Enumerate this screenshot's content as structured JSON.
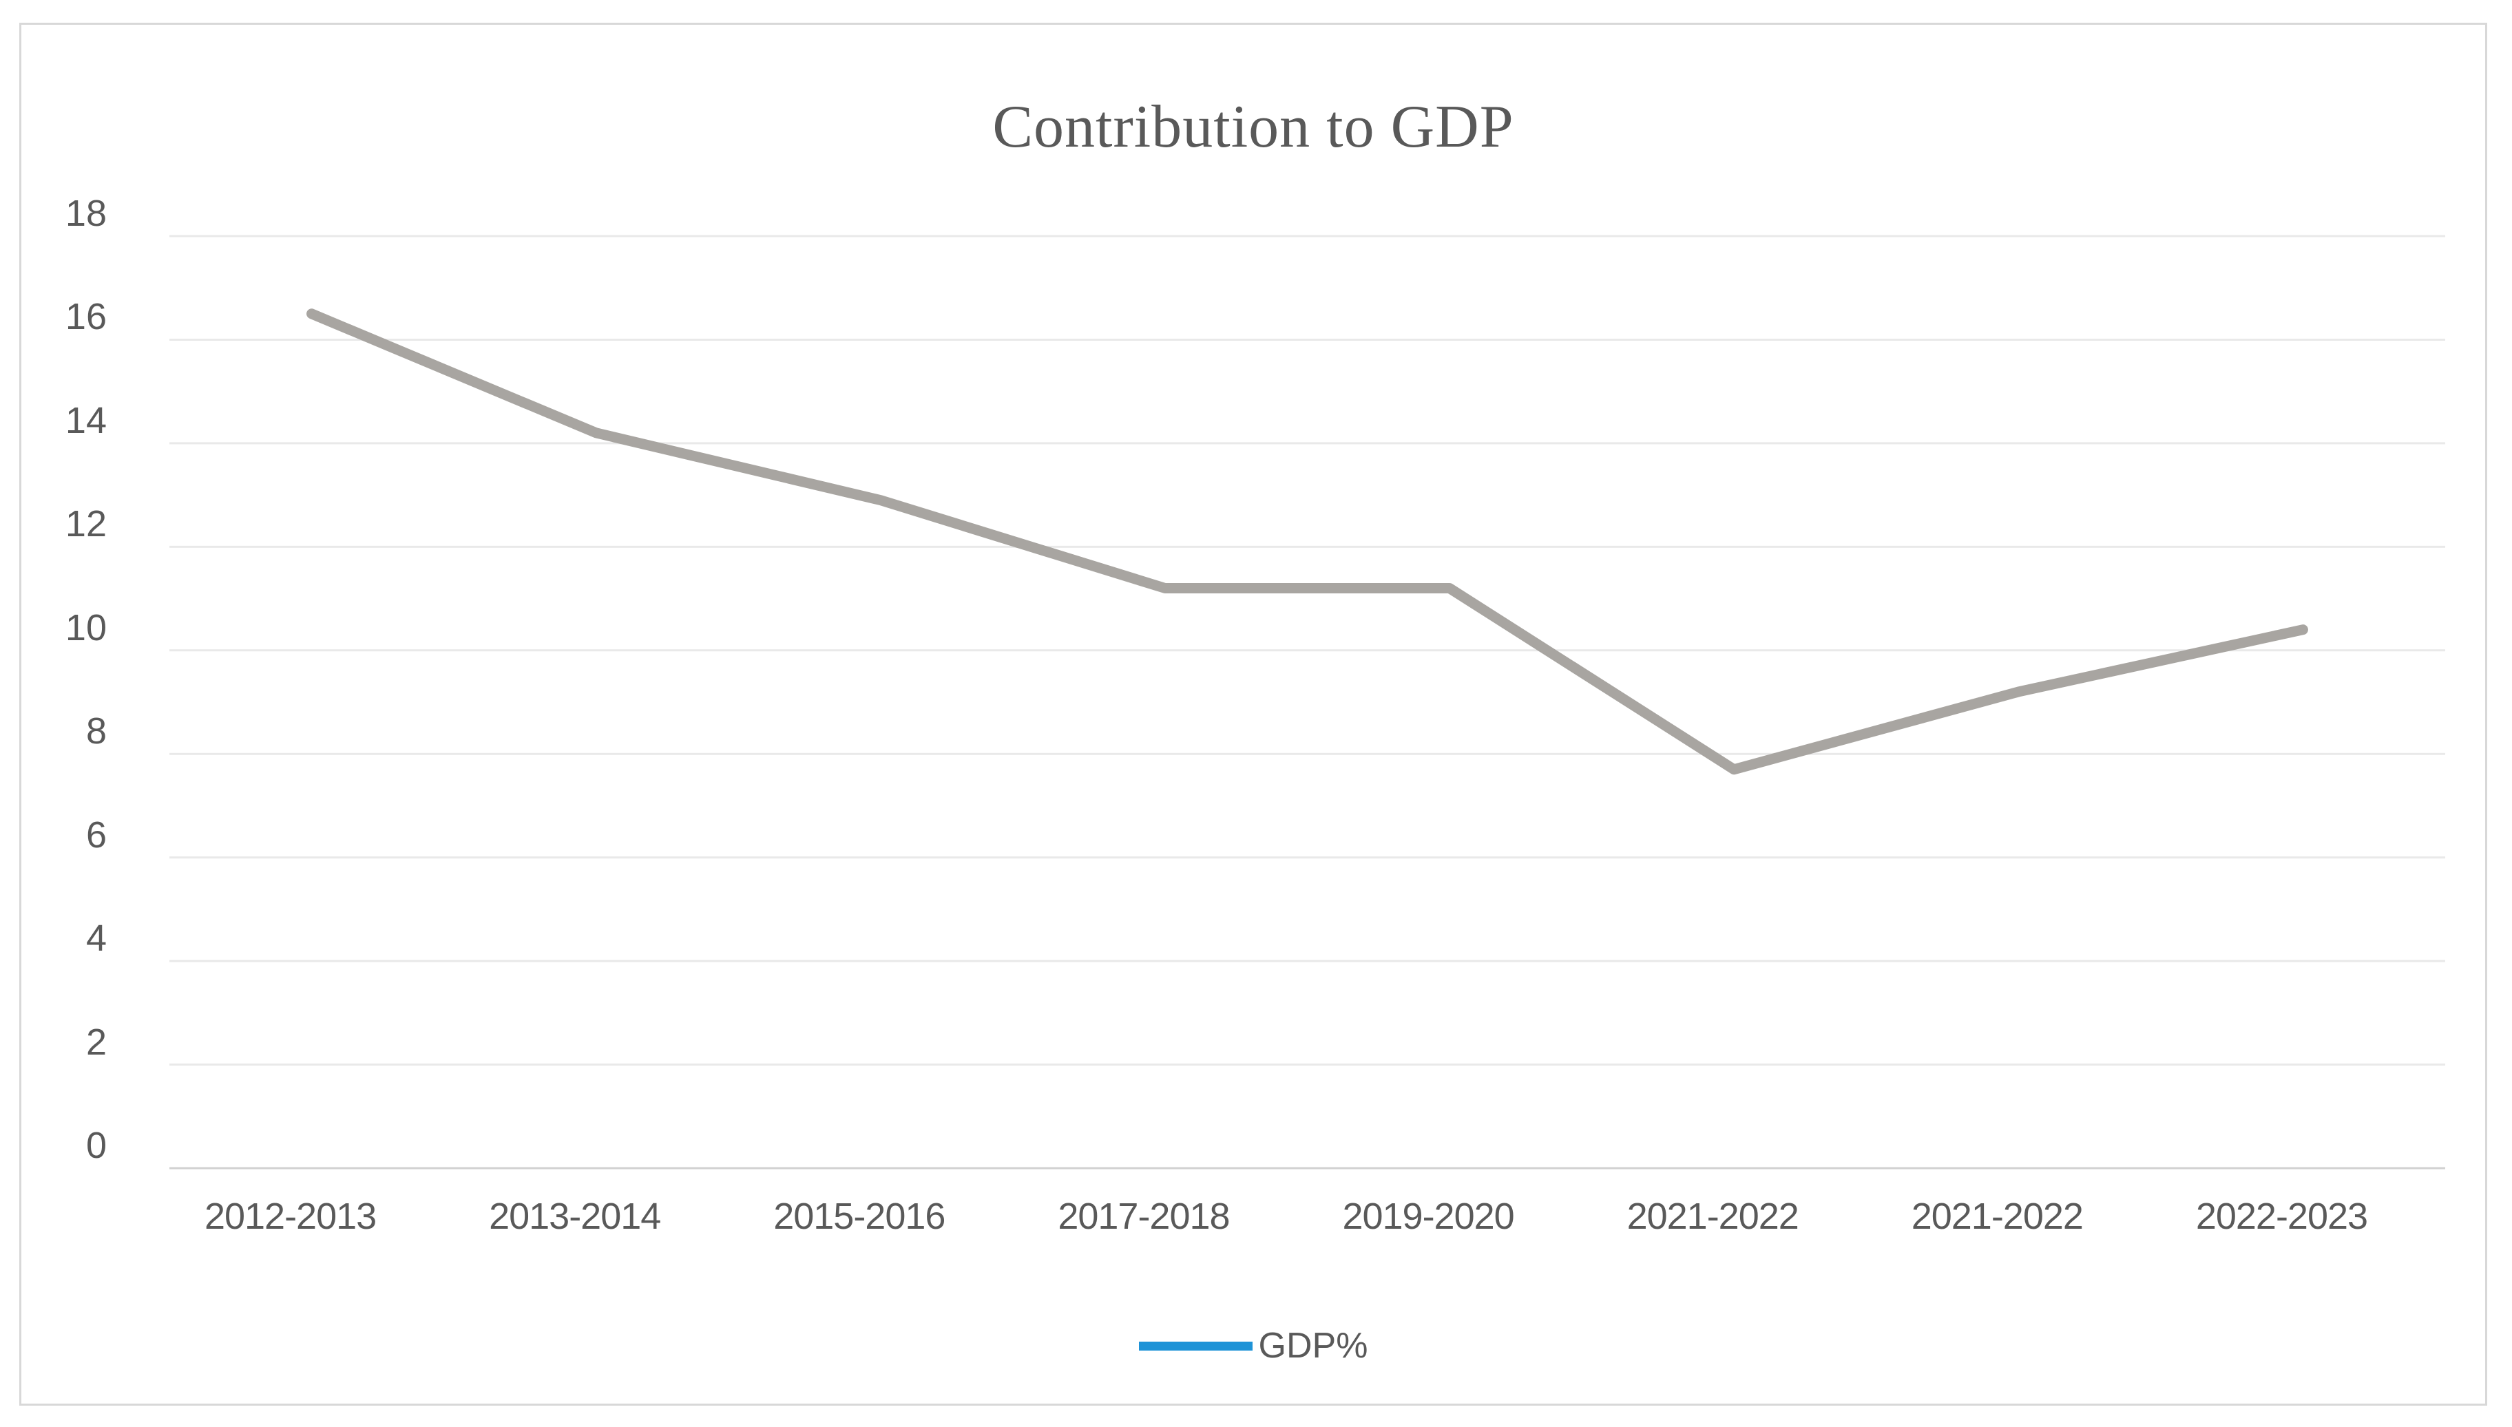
{
  "chart_data": {
    "type": "line",
    "title": "Contribution to GDP",
    "categories": [
      "2012-2013",
      "2013-2014",
      "2015-2016",
      "2017-2018",
      "2019-2020",
      "2021-2022",
      "2021-2022",
      "2022-2023"
    ],
    "series": [
      {
        "name": "GDP%",
        "values": [
          16.5,
          14.2,
          12.9,
          11.2,
          11.2,
          7.7,
          9.2,
          10.4
        ]
      }
    ],
    "xlabel": "",
    "ylabel": "",
    "ylim": [
      0,
      18
    ],
    "yticks": [
      0,
      2,
      4,
      6,
      8,
      10,
      12,
      14,
      16,
      18
    ],
    "grid": "horizontal",
    "legend_position": "bottom",
    "colors": {
      "line": "#a8a5a1",
      "legend_marker": "#1e93d7",
      "gridline": "#e9e9e9",
      "axis_line": "#d2d2d2",
      "text": "#595959",
      "frame_border": "#d8d8d8",
      "background": "#ffffff"
    }
  },
  "legend": {
    "label": "GDP%"
  }
}
